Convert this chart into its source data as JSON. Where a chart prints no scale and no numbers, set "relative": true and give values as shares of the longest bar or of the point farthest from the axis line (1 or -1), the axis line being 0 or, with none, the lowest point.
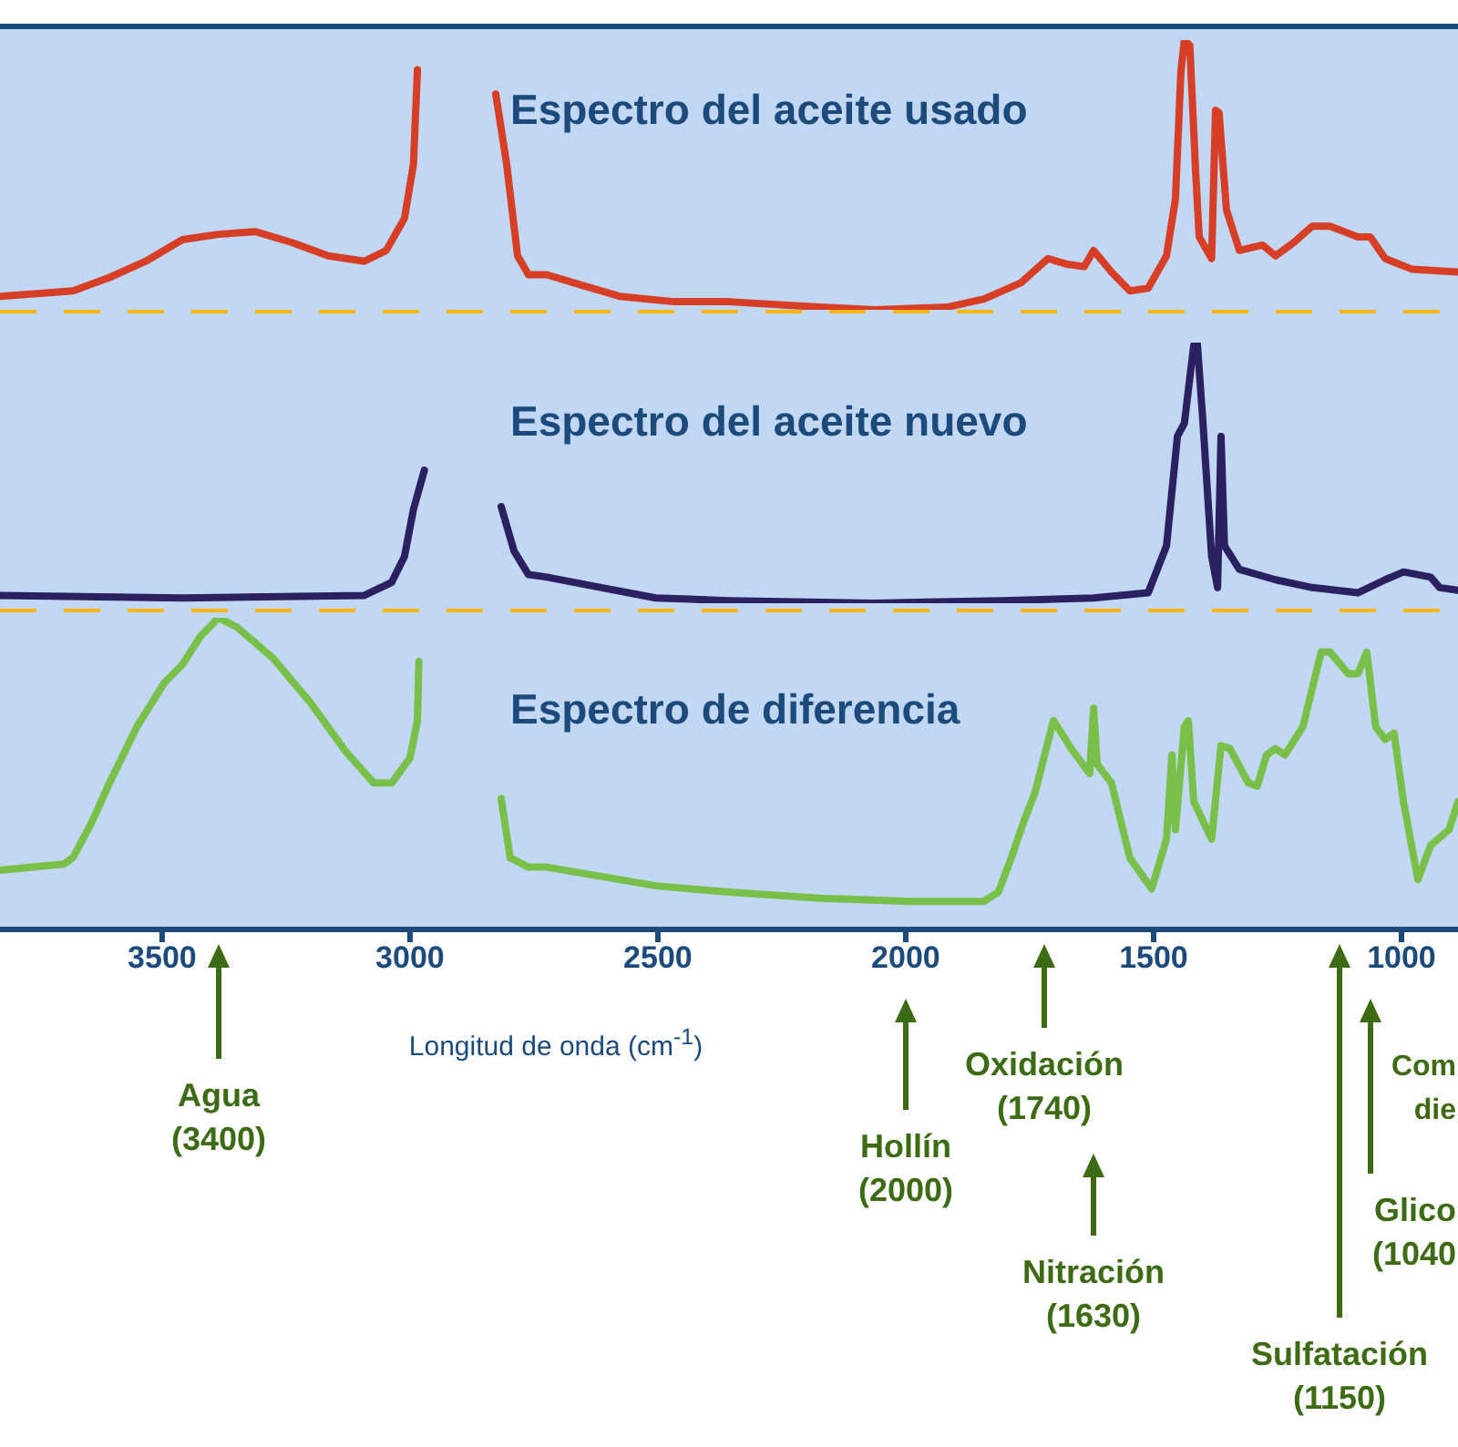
{
  "chart_data": [
    {
      "type": "line",
      "title": "Espectro del aceite usado",
      "relative": true,
      "xlim": [
        3827,
        886
      ],
      "tick_labels": false,
      "series": [
        {
          "color": "#d63e26",
          "x": [
            3827,
            3680,
            3606,
            3533,
            3459,
            3386,
            3312,
            3239,
            3165,
            3092,
            3048,
            3011,
            2993,
            2985,
            2900,
            2827,
            2805,
            2783,
            2761,
            2724,
            2651,
            2577,
            2467,
            2357,
            2173,
            2063,
            1916,
            1842,
            1768,
            1713,
            1677,
            1640,
            1621,
            1585,
            1548,
            1511,
            1474,
            1456,
            1445,
            1438,
            1427,
            1416,
            1408,
            1383,
            1375,
            1368,
            1353,
            1327,
            1280,
            1254,
            1217,
            1180,
            1144,
            1088,
            1063,
            1033,
            978,
            886
          ],
          "values": [
            0.05,
            0.07,
            0.12,
            0.18,
            0.26,
            0.28,
            0.29,
            0.25,
            0.2,
            0.18,
            0.22,
            0.34,
            0.54,
            0.89,
            null,
            0.8,
            0.54,
            0.2,
            0.13,
            0.13,
            0.09,
            0.05,
            0.03,
            0.03,
            0.01,
            0,
            0.01,
            0.04,
            0.1,
            0.19,
            0.17,
            0.16,
            0.22,
            0.14,
            0.07,
            0.08,
            0.2,
            0.41,
            0.88,
            1,
            0.98,
            0.54,
            0.27,
            0.19,
            0.74,
            0.73,
            0.37,
            0.22,
            0.24,
            0.2,
            0.25,
            0.31,
            0.31,
            0.27,
            0.27,
            0.19,
            0.15,
            0.14
          ]
        }
      ]
    },
    {
      "type": "line",
      "title": "Espectro del aceite nuevo",
      "relative": true,
      "xlim": [
        3827,
        886
      ],
      "tick_labels": false,
      "series": [
        {
          "color": "#2b2160",
          "x": [
            3827,
            3459,
            3092,
            3037,
            3011,
            2993,
            2971,
            2900,
            2816,
            2790,
            2761,
            2724,
            2614,
            2504,
            2357,
            2063,
            1805,
            1621,
            1511,
            1474,
            1452,
            1438,
            1419,
            1412,
            1401,
            1383,
            1371,
            1364,
            1357,
            1327,
            1254,
            1180,
            1088,
            1033,
            996,
            941,
            923,
            886
          ],
          "values": [
            0.03,
            0.02,
            0.03,
            0.08,
            0.18,
            0.36,
            0.51,
            null,
            0.37,
            0.2,
            0.11,
            0.1,
            0.06,
            0.02,
            0.01,
            0,
            0.01,
            0.02,
            0.04,
            0.22,
            0.64,
            0.69,
            0.99,
            1,
            0.71,
            0.18,
            0.06,
            0.64,
            0.22,
            0.13,
            0.09,
            0.06,
            0.04,
            0.09,
            0.12,
            0.1,
            0.06,
            0.05
          ]
        }
      ]
    },
    {
      "type": "line",
      "title": "Espectro de diferencia",
      "relative": true,
      "xlim": [
        3827,
        886
      ],
      "xticks": [
        3500,
        3000,
        2500,
        2000,
        1500,
        1000
      ],
      "xlabel": "Longitud de onda (cm$^{-1}$)",
      "series": [
        {
          "color": "#78c04a",
          "x": [
            3827,
            3698,
            3680,
            3643,
            3606,
            3551,
            3496,
            3459,
            3423,
            3386,
            3349,
            3276,
            3202,
            3129,
            3073,
            3037,
            3000,
            2985,
            2982,
            2900,
            2816,
            2798,
            2761,
            2724,
            2614,
            2504,
            2357,
            2173,
            1989,
            1842,
            1813,
            1787,
            1761,
            1739,
            1702,
            1666,
            1629,
            1621,
            1614,
            1585,
            1548,
            1504,
            1474,
            1463,
            1456,
            1438,
            1430,
            1419,
            1383,
            1364,
            1346,
            1309,
            1291,
            1272,
            1254,
            1235,
            1199,
            1162,
            1144,
            1107,
            1088,
            1070,
            1052,
            1033,
            1015,
            996,
            967,
            941,
            904,
            886
          ],
          "values": [
            0.19,
            0.21,
            0.23,
            0.34,
            0.47,
            0.65,
            0.79,
            0.85,
            0.94,
            1,
            0.97,
            0.87,
            0.73,
            0.57,
            0.47,
            0.47,
            0.55,
            0.67,
            0.86,
            null,
            0.42,
            0.23,
            0.2,
            0.2,
            0.17,
            0.14,
            0.12,
            0.1,
            0.09,
            0.09,
            0.12,
            0.23,
            0.35,
            0.44,
            0.67,
            0.58,
            0.5,
            0.71,
            0.53,
            0.47,
            0.23,
            0.13,
            0.29,
            0.56,
            0.32,
            0.65,
            0.67,
            0.41,
            0.29,
            0.59,
            0.58,
            0.47,
            0.46,
            0.56,
            0.58,
            0.56,
            0.65,
            0.89,
            0.89,
            0.82,
            0.82,
            0.89,
            0.65,
            0.61,
            0.63,
            0.41,
            0.16,
            0.27,
            0.32,
            0.41
          ]
        }
      ],
      "annotations": [
        "Agua (3400)",
        "Hollín (2000)",
        "Oxidación (1740)",
        "Nitración (1630)",
        "Sulfatación (1150)",
        "Glico (1040",
        "Com die"
      ]
    }
  ]
}
